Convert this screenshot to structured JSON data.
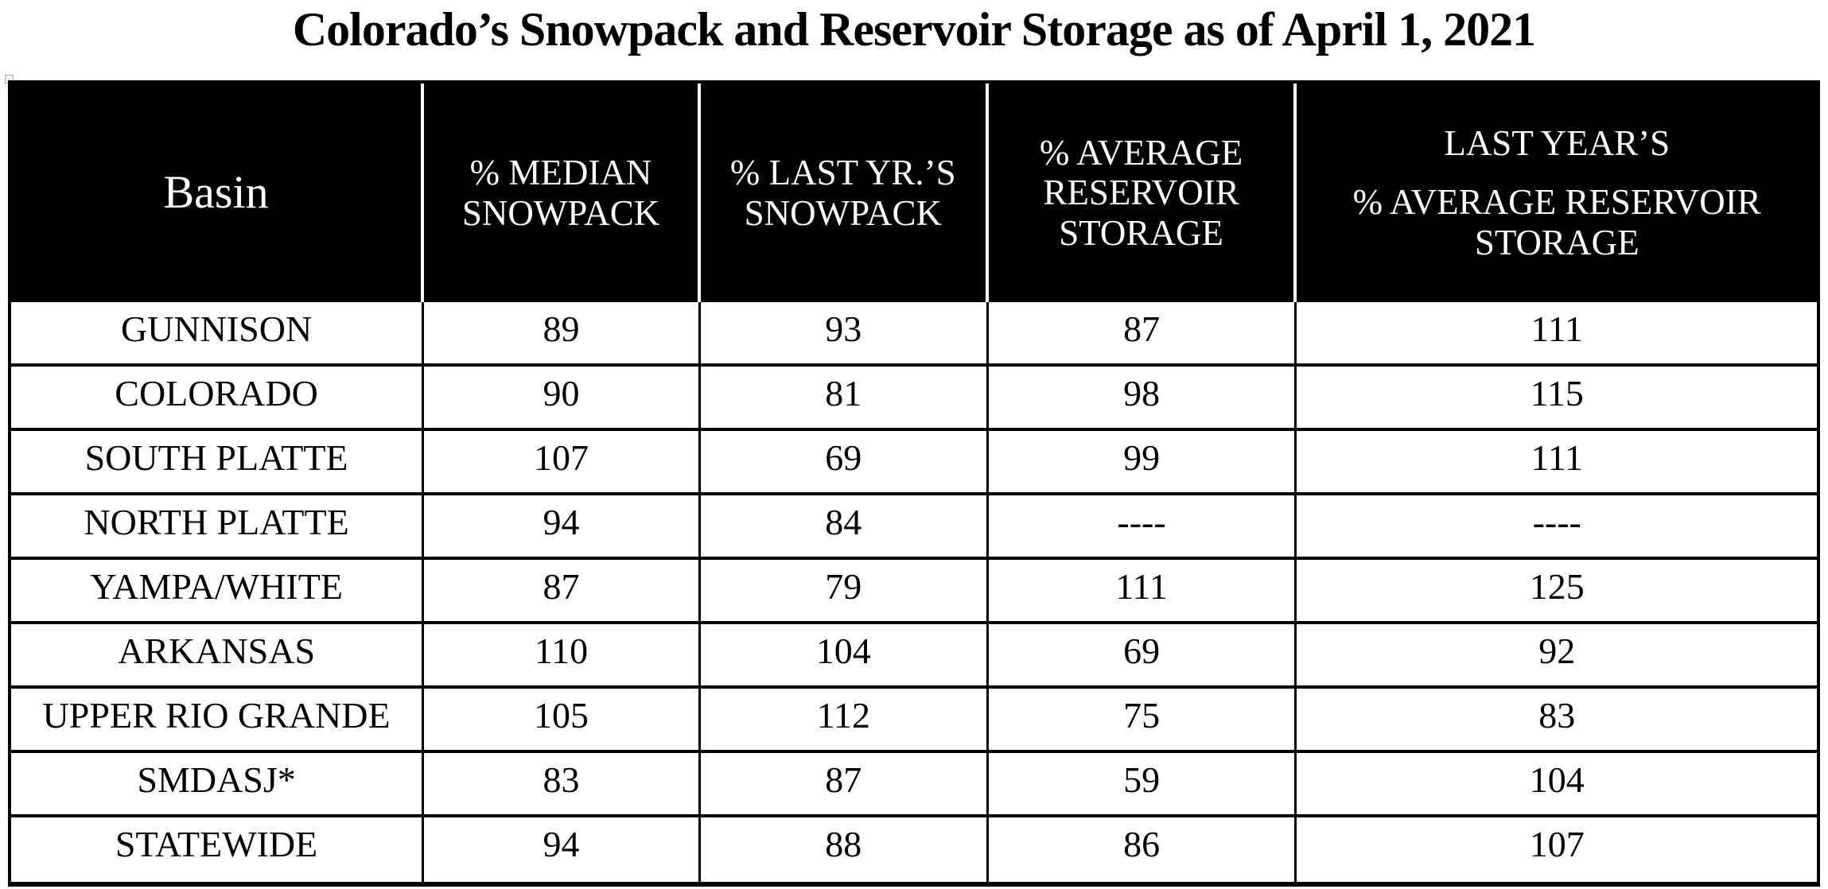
{
  "title": "Colorado’s Snowpack and Reservoir Storage as of April 1, 2021",
  "colors": {
    "header_bg": "#000000",
    "header_text": "#ffffff",
    "border": "#000000",
    "page_bg": "#ffffff"
  },
  "table": {
    "headers": {
      "basin": "Basin",
      "median_snowpack": "% MEDIAN SNOWPACK",
      "last_yr_snowpack": "% LAST YR.’S SNOWPACK",
      "avg_reservoir_storage": "% AVERAGE RESERVOIR STORAGE",
      "last_year_line1": "LAST YEAR’S",
      "last_year_line2": "% AVERAGE RESERVOIR STORAGE"
    },
    "rows": [
      {
        "basin": "GUNNISON",
        "median_snowpack": "89",
        "last_yr_snowpack": "93",
        "avg_reservoir_storage": "87",
        "last_yr_avg_reservoir_storage": "111"
      },
      {
        "basin": "COLORADO",
        "median_snowpack": "90",
        "last_yr_snowpack": "81",
        "avg_reservoir_storage": "98",
        "last_yr_avg_reservoir_storage": "115"
      },
      {
        "basin": "SOUTH PLATTE",
        "median_snowpack": "107",
        "last_yr_snowpack": "69",
        "avg_reservoir_storage": "99",
        "last_yr_avg_reservoir_storage": "111"
      },
      {
        "basin": "NORTH PLATTE",
        "median_snowpack": "94",
        "last_yr_snowpack": "84",
        "avg_reservoir_storage": "----",
        "last_yr_avg_reservoir_storage": "----"
      },
      {
        "basin": "YAMPA/WHITE",
        "median_snowpack": "87",
        "last_yr_snowpack": "79",
        "avg_reservoir_storage": "111",
        "last_yr_avg_reservoir_storage": "125"
      },
      {
        "basin": "ARKANSAS",
        "median_snowpack": "110",
        "last_yr_snowpack": "104",
        "avg_reservoir_storage": "69",
        "last_yr_avg_reservoir_storage": "92"
      },
      {
        "basin": "UPPER RIO GRANDE",
        "median_snowpack": "105",
        "last_yr_snowpack": "112",
        "avg_reservoir_storage": "75",
        "last_yr_avg_reservoir_storage": "83"
      },
      {
        "basin": "SMDASJ*",
        "median_snowpack": "83",
        "last_yr_snowpack": "87",
        "avg_reservoir_storage": "59",
        "last_yr_avg_reservoir_storage": "104"
      },
      {
        "basin": "STATEWIDE",
        "median_snowpack": "94",
        "last_yr_snowpack": "88",
        "avg_reservoir_storage": "86",
        "last_yr_avg_reservoir_storage": "107"
      }
    ]
  }
}
